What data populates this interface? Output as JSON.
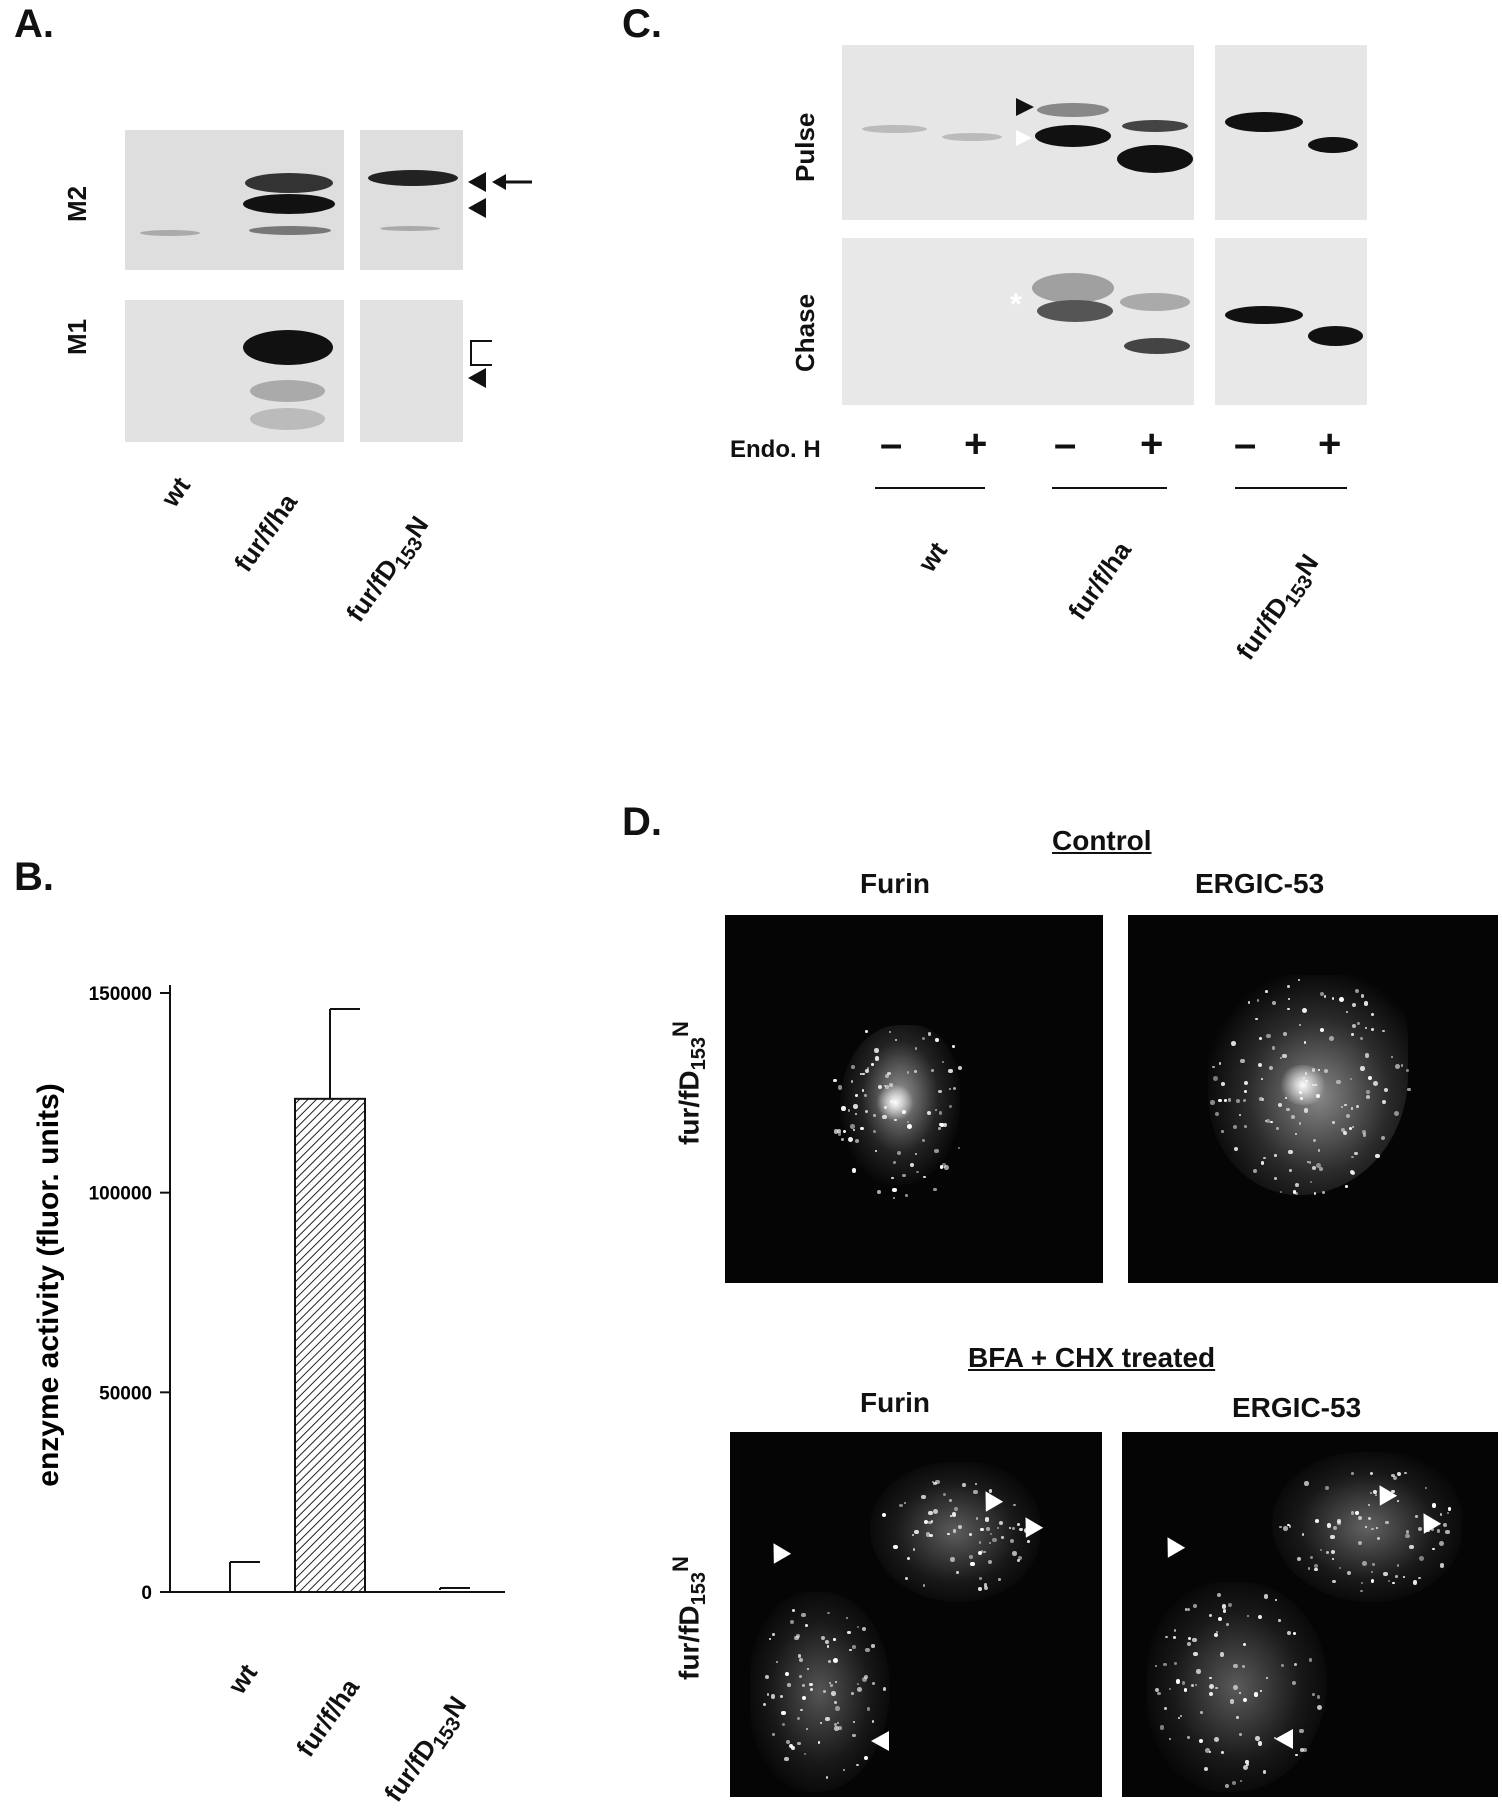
{
  "panelA": {
    "label": "A.",
    "rows": [
      "M2",
      "M1"
    ],
    "lanes": [
      "wt",
      "fur/f/ha",
      "fur/fD",
      "153",
      "N"
    ]
  },
  "panelB": {
    "label": "B.",
    "chart_data": {
      "type": "bar",
      "categories": [
        "wt",
        "fur/f/ha",
        "fur/fD153N"
      ],
      "values": [
        0,
        123500,
        500
      ],
      "errors": [
        7500,
        22500,
        500
      ],
      "ylabel": "enzyme activity (fluor. units)",
      "ylim": [
        0,
        150000
      ],
      "yticks": [
        "0",
        "50000",
        "100000",
        "150000"
      ],
      "ytick_values": [
        0,
        50000,
        100000,
        150000
      ],
      "grid": false
    }
  },
  "panelC": {
    "label": "C.",
    "rows": [
      "Pulse",
      "Chase"
    ],
    "endo_label": "Endo. H",
    "signs": [
      "–",
      "+",
      "–",
      "+",
      "–",
      "+"
    ],
    "groups": [
      "wt",
      "fur/f/ha",
      "fur/fD",
      "153",
      "N"
    ],
    "asterisk": "*"
  },
  "panelD": {
    "label": "D.",
    "control_title": "Control",
    "treated_title": "BFA + CHX treated",
    "col_furin": "Furin",
    "col_ergic": "ERGIC-53",
    "row_label_main": "fur/fD",
    "row_label_sub": "153",
    "row_label_sup": "N"
  }
}
